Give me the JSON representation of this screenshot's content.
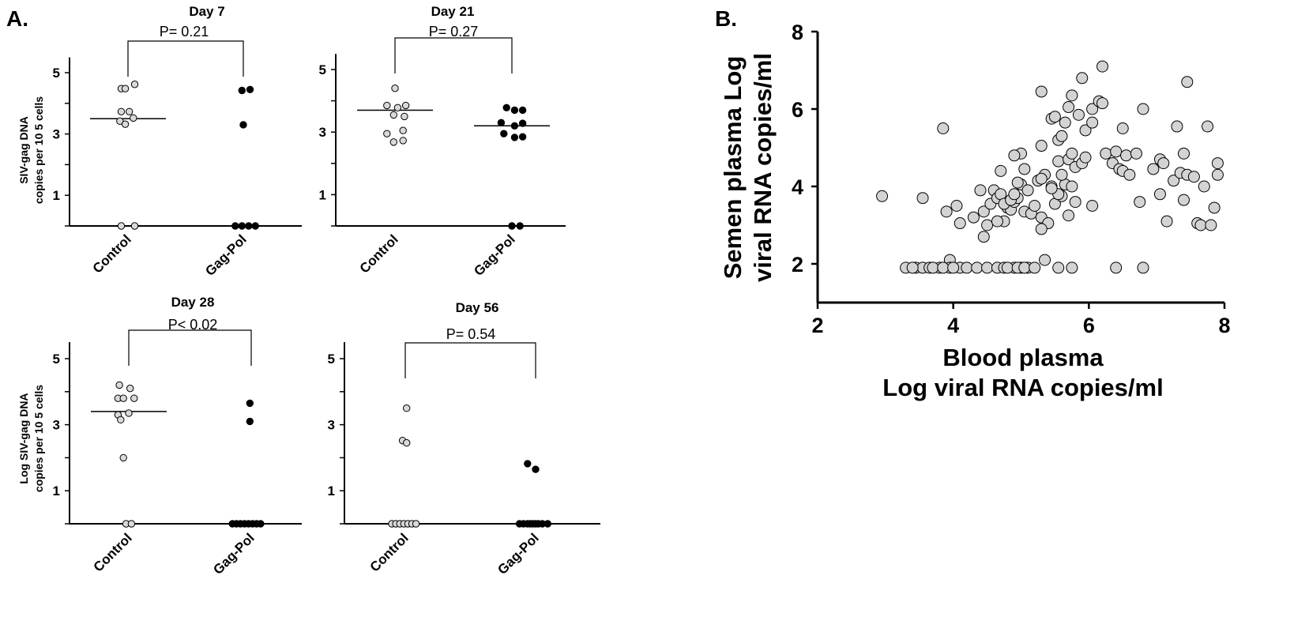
{
  "panel_labels": {
    "a": "A.",
    "b": "B."
  },
  "chart_data": [
    {
      "id": "day7",
      "type": "scatter",
      "title": "Day 7",
      "p_value": "P= 0.21",
      "ylabel_lines": [
        "SIV-gag DNA",
        "copies per 10 5 cells"
      ],
      "yticks": [
        "1",
        "3",
        "5"
      ],
      "ylim": [
        0,
        5.5
      ],
      "categories": [
        "Control",
        "Gag-Pol"
      ],
      "series": [
        {
          "category": "Control",
          "fill": "open",
          "median": 3.5,
          "points": [
            [
              -0.25,
              4.48
            ],
            [
              0.25,
              4.62
            ],
            [
              -0.1,
              4.48
            ],
            [
              -0.25,
              3.73
            ],
            [
              0.05,
              3.73
            ],
            [
              -0.3,
              3.42
            ],
            [
              0.2,
              3.52
            ],
            [
              -0.1,
              3.32
            ],
            [
              -0.25,
              0
            ],
            [
              0.25,
              0
            ]
          ]
        },
        {
          "category": "Gag-Pol",
          "fill": "solid",
          "median": null,
          "points": [
            [
              -0.05,
              4.42
            ],
            [
              0.25,
              4.45
            ],
            [
              0,
              3.3
            ],
            [
              -0.3,
              0
            ],
            [
              -0.05,
              0
            ],
            [
              0.2,
              0
            ],
            [
              0.45,
              0
            ]
          ]
        }
      ]
    },
    {
      "id": "day21",
      "type": "scatter",
      "title": "Day 21",
      "p_value": "P= 0.27",
      "ylabel_lines": [],
      "yticks": [
        "1",
        "3",
        "5"
      ],
      "ylim": [
        0,
        5.5
      ],
      "categories": [
        "Control",
        "Gag-Pol"
      ],
      "series": [
        {
          "category": "Control",
          "fill": "open",
          "median": 3.7,
          "points": [
            [
              0,
              4.4
            ],
            [
              -0.3,
              3.85
            ],
            [
              0.1,
              3.78
            ],
            [
              0.4,
              3.85
            ],
            [
              -0.05,
              3.55
            ],
            [
              0.35,
              3.5
            ],
            [
              -0.3,
              2.95
            ],
            [
              0.3,
              3.05
            ],
            [
              -0.05,
              2.68
            ],
            [
              0.3,
              2.73
            ]
          ]
        },
        {
          "category": "Gag-Pol",
          "fill": "solid",
          "median": 3.2,
          "points": [
            [
              -0.2,
              3.78
            ],
            [
              0.1,
              3.7
            ],
            [
              0.4,
              3.7
            ],
            [
              -0.4,
              3.3
            ],
            [
              0.1,
              3.2
            ],
            [
              0.4,
              3.28
            ],
            [
              -0.3,
              2.95
            ],
            [
              0.1,
              2.83
            ],
            [
              0.4,
              2.85
            ],
            [
              0,
              0
            ],
            [
              0.3,
              0
            ]
          ]
        }
      ]
    },
    {
      "id": "day28",
      "type": "scatter",
      "title": "Day 28",
      "p_value": "P< 0.02",
      "ylabel_lines": [
        "Log SIV-gag DNA",
        "copies per 10 5 cells"
      ],
      "yticks": [
        "1",
        "3",
        "5"
      ],
      "ylim": [
        0,
        5.5
      ],
      "categories": [
        "Control",
        "Gag-Pol"
      ],
      "series": [
        {
          "category": "Control",
          "fill": "open",
          "median": 3.4,
          "points": [
            [
              -0.35,
              4.2
            ],
            [
              0.05,
              4.1
            ],
            [
              -0.4,
              3.8
            ],
            [
              -0.2,
              3.8
            ],
            [
              0.2,
              3.8
            ],
            [
              -0.4,
              3.3
            ],
            [
              0,
              3.35
            ],
            [
              -0.3,
              3.15
            ],
            [
              -0.2,
              2.0
            ],
            [
              -0.1,
              0
            ],
            [
              0.1,
              0
            ]
          ]
        },
        {
          "category": "Gag-Pol",
          "fill": "solid",
          "median": null,
          "points": [
            [
              -0.05,
              3.65
            ],
            [
              -0.05,
              3.1
            ],
            [
              -0.7,
              0
            ],
            [
              -0.55,
              0
            ],
            [
              -0.4,
              0
            ],
            [
              -0.25,
              0
            ],
            [
              -0.1,
              0
            ],
            [
              0.05,
              0
            ],
            [
              0.2,
              0
            ],
            [
              0.35,
              0
            ]
          ]
        }
      ]
    },
    {
      "id": "day56",
      "type": "scatter",
      "title": "Day 56",
      "p_value": "P= 0.54",
      "ylabel_lines": [],
      "yticks": [
        "1",
        "3",
        "5"
      ],
      "ylim": [
        0,
        5.5
      ],
      "categories": [
        "Control",
        "Gag-Pol"
      ],
      "series": [
        {
          "category": "Control",
          "fill": "open",
          "median": null,
          "points": [
            [
              0.05,
              3.5
            ],
            [
              -0.1,
              2.52
            ],
            [
              0.05,
              2.45
            ],
            [
              -0.5,
              0
            ],
            [
              -0.35,
              0
            ],
            [
              -0.2,
              0
            ],
            [
              -0.05,
              0
            ],
            [
              0.1,
              0
            ],
            [
              0.25,
              0
            ],
            [
              0.4,
              0
            ]
          ]
        },
        {
          "category": "Gag-Pol",
          "fill": "solid",
          "median": null,
          "points": [
            [
              -0.3,
              1.82
            ],
            [
              0,
              1.65
            ],
            [
              -0.6,
              0
            ],
            [
              -0.45,
              0
            ],
            [
              -0.3,
              0
            ],
            [
              -0.2,
              0
            ],
            [
              -0.1,
              0
            ],
            [
              0,
              0
            ],
            [
              0.1,
              0
            ],
            [
              0.25,
              0
            ],
            [
              0.45,
              0
            ]
          ]
        }
      ]
    },
    {
      "id": "panelB",
      "type": "scatter",
      "xlabel_lines": [
        "Blood plasma",
        "Log viral RNA copies/ml"
      ],
      "ylabel_lines": [
        "Semen plasma Log",
        "viral RNA copies/ml"
      ],
      "xlim": [
        2,
        8
      ],
      "ylim": [
        1,
        8
      ],
      "xticks": [
        2,
        4,
        6,
        8
      ],
      "yticks": [
        2,
        4,
        6,
        8
      ],
      "points": [
        [
          2.95,
          3.75
        ],
        [
          3.55,
          3.7
        ],
        [
          3.85,
          5.5
        ],
        [
          3.9,
          3.35
        ],
        [
          4.05,
          3.5
        ],
        [
          4.1,
          3.05
        ],
        [
          4.3,
          3.2
        ],
        [
          4.4,
          3.9
        ],
        [
          4.45,
          3.35
        ],
        [
          4.45,
          2.7
        ],
        [
          4.55,
          3.55
        ],
        [
          4.6,
          3.9
        ],
        [
          4.65,
          3.7
        ],
        [
          4.7,
          3.8
        ],
        [
          4.75,
          3.1
        ],
        [
          4.8,
          3.45
        ],
        [
          4.85,
          3.4
        ],
        [
          4.9,
          3.6
        ],
        [
          4.95,
          3.7
        ],
        [
          5.05,
          3.35
        ],
        [
          5.15,
          3.3
        ],
        [
          5.2,
          3.5
        ],
        [
          5.3,
          3.2
        ],
        [
          5.4,
          3.05
        ],
        [
          5.5,
          3.55
        ],
        [
          5.6,
          3.75
        ],
        [
          5.7,
          3.25
        ],
        [
          4.5,
          3.0
        ],
        [
          4.65,
          3.1
        ],
        [
          4.75,
          3.55
        ],
        [
          4.85,
          3.65
        ],
        [
          4.9,
          3.8
        ],
        [
          5.0,
          4.05
        ],
        [
          5.1,
          3.9
        ],
        [
          5.25,
          4.15
        ],
        [
          5.35,
          4.3
        ],
        [
          5.45,
          4.0
        ],
        [
          5.55,
          3.8
        ],
        [
          5.65,
          4.05
        ],
        [
          5.75,
          4.0
        ],
        [
          5.8,
          3.6
        ],
        [
          4.95,
          4.1
        ],
        [
          5.05,
          4.45
        ],
        [
          5.3,
          4.2
        ],
        [
          5.45,
          3.95
        ],
        [
          5.55,
          4.65
        ],
        [
          5.6,
          4.3
        ],
        [
          5.7,
          4.7
        ],
        [
          5.75,
          4.85
        ],
        [
          5.8,
          4.5
        ],
        [
          5.9,
          4.6
        ],
        [
          5.95,
          4.75
        ],
        [
          5.0,
          4.85
        ],
        [
          4.9,
          4.8
        ],
        [
          4.7,
          4.4
        ],
        [
          5.3,
          5.05
        ],
        [
          5.45,
          5.75
        ],
        [
          5.5,
          5.8
        ],
        [
          5.55,
          5.2
        ],
        [
          5.6,
          5.3
        ],
        [
          5.65,
          5.65
        ],
        [
          5.7,
          6.05
        ],
        [
          5.75,
          6.35
        ],
        [
          5.85,
          5.85
        ],
        [
          5.95,
          5.45
        ],
        [
          6.05,
          5.65
        ],
        [
          5.3,
          6.45
        ],
        [
          5.9,
          6.8
        ],
        [
          6.05,
          6.0
        ],
        [
          6.15,
          6.2
        ],
        [
          6.2,
          6.15
        ],
        [
          6.2,
          7.1
        ],
        [
          6.25,
          4.85
        ],
        [
          6.35,
          4.6
        ],
        [
          6.4,
          4.9
        ],
        [
          6.45,
          4.45
        ],
        [
          6.5,
          4.4
        ],
        [
          6.5,
          5.5
        ],
        [
          6.55,
          4.8
        ],
        [
          6.6,
          4.3
        ],
        [
          6.7,
          4.85
        ],
        [
          6.75,
          3.6
        ],
        [
          6.8,
          6.0
        ],
        [
          6.95,
          4.45
        ],
        [
          7.05,
          4.7
        ],
        [
          7.05,
          3.8
        ],
        [
          7.1,
          4.6
        ],
        [
          7.15,
          3.1
        ],
        [
          7.25,
          4.15
        ],
        [
          7.3,
          5.55
        ],
        [
          7.35,
          4.35
        ],
        [
          7.4,
          4.85
        ],
        [
          7.4,
          3.65
        ],
        [
          7.45,
          4.3
        ],
        [
          7.45,
          6.7
        ],
        [
          7.55,
          4.25
        ],
        [
          7.6,
          3.05
        ],
        [
          7.65,
          3.0
        ],
        [
          7.7,
          4.0
        ],
        [
          7.75,
          5.55
        ],
        [
          7.8,
          3.0
        ],
        [
          7.85,
          3.45
        ],
        [
          7.9,
          4.6
        ],
        [
          7.9,
          4.3
        ],
        [
          5.3,
          2.9
        ],
        [
          5.35,
          2.1
        ],
        [
          3.95,
          2.1
        ],
        [
          6.05,
          3.5
        ],
        [
          3.3,
          1.9
        ],
        [
          3.45,
          1.9
        ],
        [
          3.55,
          1.9
        ],
        [
          3.65,
          1.9
        ],
        [
          3.8,
          1.9
        ],
        [
          3.95,
          1.9
        ],
        [
          4.1,
          1.9
        ],
        [
          4.2,
          1.9
        ],
        [
          4.35,
          1.9
        ],
        [
          4.5,
          1.9
        ],
        [
          4.65,
          1.9
        ],
        [
          4.75,
          1.9
        ],
        [
          4.9,
          1.9
        ],
        [
          5.0,
          1.9
        ],
        [
          5.1,
          1.9
        ],
        [
          5.55,
          1.9
        ],
        [
          5.75,
          1.9
        ],
        [
          6.4,
          1.9
        ],
        [
          6.8,
          1.9
        ],
        [
          3.4,
          1.9
        ],
        [
          3.7,
          1.9
        ],
        [
          3.85,
          1.9
        ],
        [
          4.0,
          1.9
        ],
        [
          4.8,
          1.9
        ],
        [
          4.95,
          1.9
        ],
        [
          5.05,
          1.9
        ],
        [
          5.2,
          1.9
        ]
      ]
    }
  ]
}
